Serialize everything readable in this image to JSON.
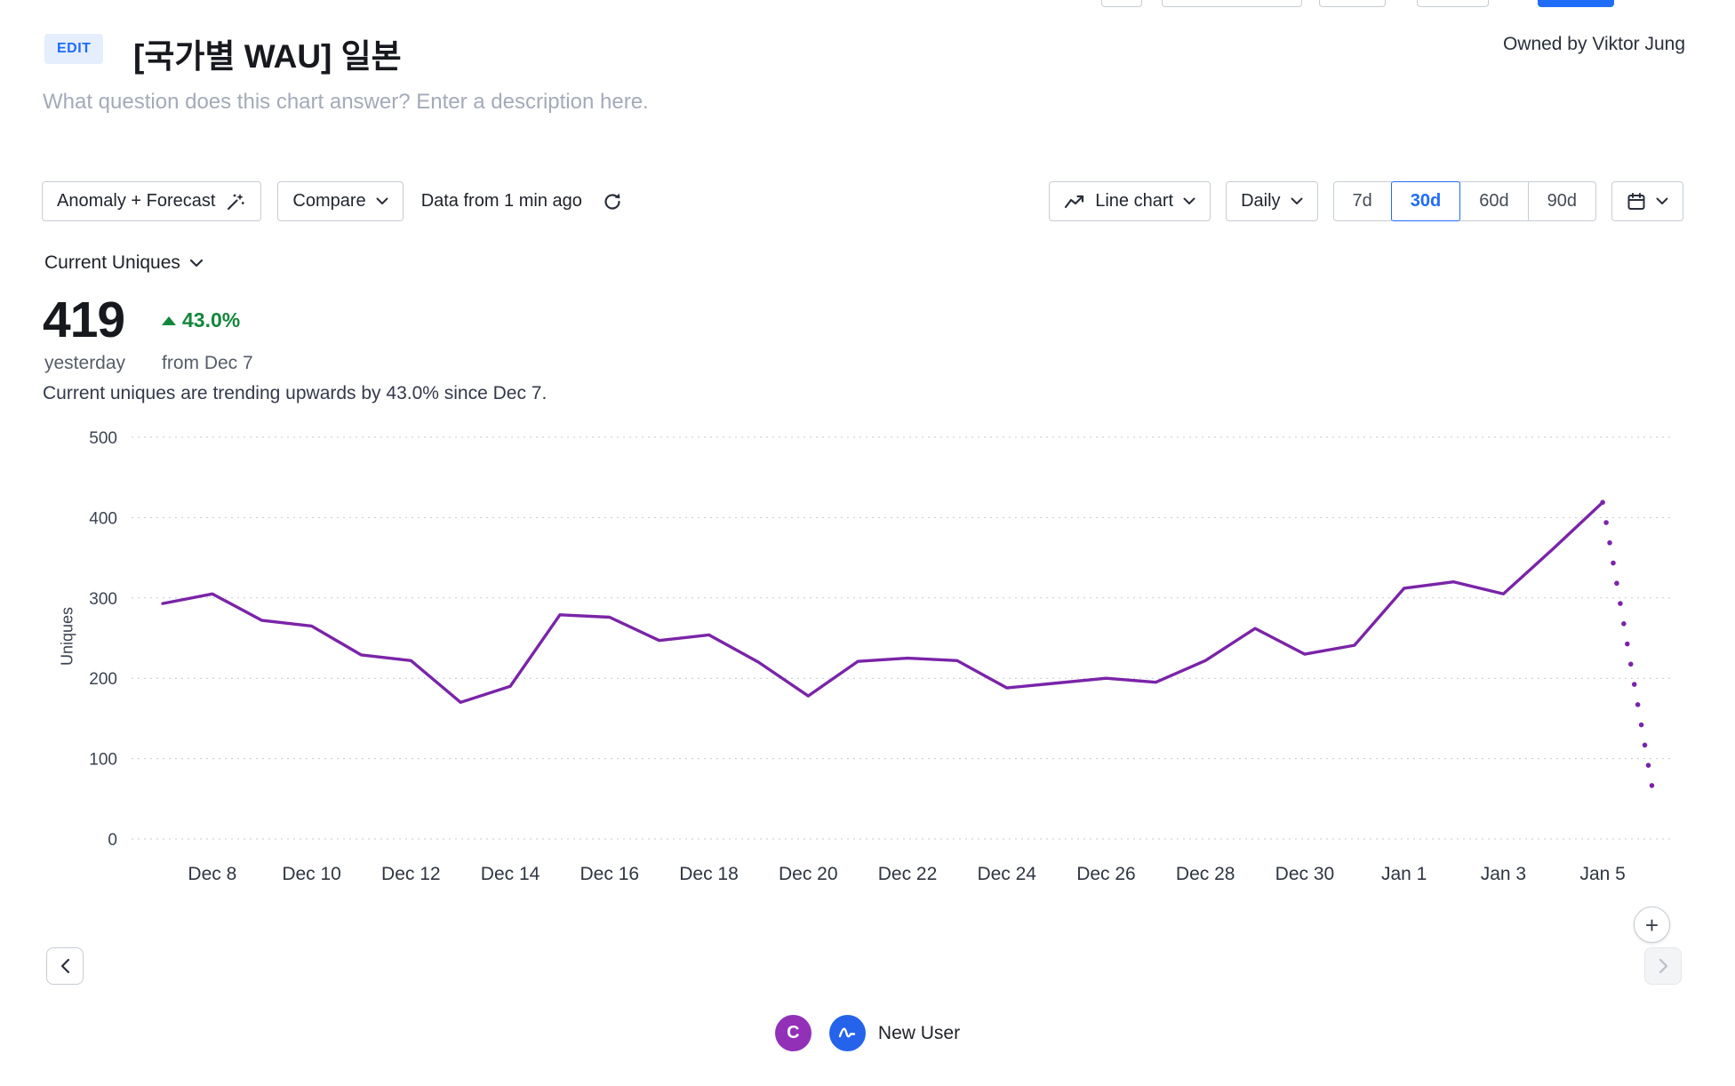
{
  "colors": {
    "accent_blue": "#1f6cf9",
    "line_purple": "#7a24a8",
    "positive_green": "#13863b",
    "legend_purple": "#9330b8",
    "legend_blue": "#2563eb"
  },
  "header": {
    "edit_badge": "EDIT",
    "title": "[국가별 WAU] 일본",
    "owner": "Owned by Viktor Jung",
    "description_placeholder": "What question does this chart answer? Enter a description here."
  },
  "toolbar": {
    "anomaly_forecast_label": "Anomaly + Forecast",
    "compare_label": "Compare",
    "freshness_label": "Data from 1 min ago",
    "chart_type_label": "Line chart",
    "granularity_label": "Daily",
    "ranges": [
      "7d",
      "30d",
      "60d",
      "90d"
    ],
    "selected_range": "30d"
  },
  "icons": {
    "anomaly_button_icon": "wand-sparkles-icon",
    "freshness_icon": "refresh-icon",
    "chart_type_icon": "line-chart-icon",
    "date_picker_icon": "calendar-icon",
    "dropdowns": "chevron-down-icon",
    "trend": "triangle-up-icon"
  },
  "metric": {
    "label": "Current Uniques",
    "value": "419",
    "change_percent": "43.0%",
    "value_caption": "yesterday",
    "change_caption": "from Dec 7",
    "summary": "Current uniques are trending upwards by 43.0% since Dec 7."
  },
  "chart_data": {
    "type": "line",
    "ylabel": "Uniques",
    "ylim": [
      0,
      500
    ],
    "yticks": [
      0,
      100,
      200,
      300,
      400,
      500
    ],
    "grid": "horizontal-dotted",
    "legend_position": "bottom-center",
    "series_name": "New User",
    "color": "#7a24a8",
    "dates": [
      "Dec 7",
      "Dec 8",
      "Dec 9",
      "Dec 10",
      "Dec 11",
      "Dec 12",
      "Dec 13",
      "Dec 14",
      "Dec 15",
      "Dec 16",
      "Dec 17",
      "Dec 18",
      "Dec 19",
      "Dec 20",
      "Dec 21",
      "Dec 22",
      "Dec 23",
      "Dec 24",
      "Dec 25",
      "Dec 26",
      "Dec 27",
      "Dec 28",
      "Dec 29",
      "Dec 30",
      "Dec 31",
      "Jan 1",
      "Jan 2",
      "Jan 3",
      "Jan 4",
      "Jan 5",
      "Jan 6"
    ],
    "values": [
      293,
      305,
      272,
      265,
      229,
      222,
      170,
      190,
      279,
      276,
      247,
      254,
      220,
      178,
      221,
      225,
      222,
      188,
      194,
      200,
      195,
      222,
      262,
      230,
      241,
      312,
      320,
      305,
      361,
      419,
      63
    ],
    "dashed_from_index": 29,
    "xticklabels": [
      "Dec 8",
      "Dec 10",
      "Dec 12",
      "Dec 14",
      "Dec 16",
      "Dec 18",
      "Dec 20",
      "Dec 22",
      "Dec 24",
      "Dec 26",
      "Dec 28",
      "Dec 30",
      "Jan 1",
      "Jan 3",
      "Jan 5"
    ],
    "xtick_start_index": 1,
    "xtick_step": 2
  },
  "legend": {
    "badge_letter": "C",
    "series_label": "New User"
  },
  "footer_nav": {
    "zoom_plus": "+"
  }
}
